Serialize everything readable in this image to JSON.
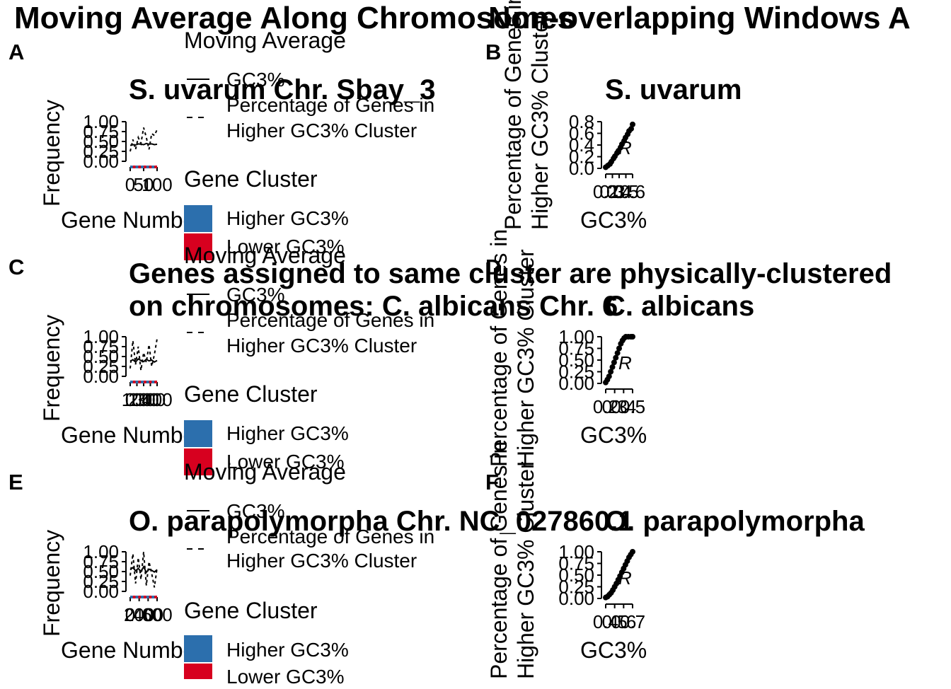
{
  "titles": {
    "left": "Moving Average Along Chromosomes",
    "right": "Non-overlapping Windows A"
  },
  "legend": {
    "line_title": "Moving Average",
    "line_gc3": "GC3%",
    "line_pct_1": "Percentage of Genes in",
    "line_pct_2": "Higher GC3% Cluster",
    "cluster_title": "Gene Cluster",
    "cluster_higher": "Higher GC3%",
    "cluster_lower": "Lower GC3%",
    "colors": {
      "higher": "#2c6fad",
      "lower": "#d7001f"
    }
  },
  "panels": {
    "A": {
      "letter": "A",
      "title": "S. uvarum Chr. Sbay_3",
      "ylabel": "Frequency",
      "xlabel": "Gene Number",
      "yticks": [
        "0.00",
        "0.25",
        "0.50",
        "0.75",
        "1.00"
      ],
      "xticks": [
        "0",
        "50",
        "100"
      ]
    },
    "B": {
      "letter": "B",
      "title": "S. uvarum",
      "ylabel_1": "Percentage of Genes in",
      "ylabel_2": "Higher GC3% Cluster",
      "xlabel": "GC3%",
      "yticks": [
        "0.0",
        "0.2",
        "0.4",
        "0.6",
        "0.8"
      ],
      "xticks": [
        "0.2",
        "0.3",
        "0.4",
        "0.5",
        "0.6"
      ],
      "stat": "R"
    },
    "C": {
      "letter": "C",
      "title_1": "Genes assigned to same cluster are physically-clustered",
      "title_2": "on chromosomes: C. albicans Chr. 6",
      "ylabel": "Frequency",
      "xlabel": "Gene Number",
      "yticks": [
        "0.00",
        "0.25",
        "0.50",
        "0.75",
        "1.00"
      ],
      "xticks": [
        "0",
        "100",
        "200",
        "300",
        "400"
      ]
    },
    "D": {
      "letter": "D",
      "title": "C. albicans",
      "ylabel_1": "Percentage of Genes in",
      "ylabel_2": "Higher GC3% Cluster",
      "xlabel": "GC3%",
      "yticks": [
        "0.00",
        "0.25",
        "0.50",
        "0.75",
        "1.00"
      ],
      "xticks": [
        "0.2",
        "0.3",
        "0.4",
        "0.5"
      ],
      "stat": "R"
    },
    "E": {
      "letter": "E",
      "title": "O. parapolymorpha Chr. NC_027860.1",
      "ylabel": "Frequency",
      "xlabel": "Gene Number",
      "yticks": [
        "0.00",
        "0.25",
        "0.50",
        "0.75",
        "1.00"
      ],
      "xticks": [
        "0",
        "200",
        "400",
        "600"
      ]
    },
    "F": {
      "letter": "F",
      "title": "O. parapolymorpha",
      "ylabel_1": "Percentage of Genes in",
      "ylabel_2": "Higher GC3% Cluster",
      "xlabel": "GC3%",
      "yticks": [
        "0.00",
        "0.25",
        "0.50",
        "0.75",
        "1.00"
      ],
      "xticks": [
        "0.4",
        "0.5",
        "0.6",
        "0.7"
      ],
      "stat": "R"
    }
  },
  "chart_data": [
    {
      "panel": "A",
      "type": "line",
      "x": [
        0,
        10,
        20,
        30,
        40,
        50,
        60,
        70,
        80,
        90,
        100
      ],
      "series": [
        {
          "name": "GC3%",
          "values": [
            0.4,
            0.42,
            0.41,
            0.44,
            0.43,
            0.42,
            0.45,
            0.43,
            0.44,
            0.42,
            0.43
          ]
        },
        {
          "name": "Percentage of Genes in Higher GC3% Cluster",
          "values": [
            0.25,
            0.55,
            0.3,
            0.6,
            0.45,
            0.85,
            0.6,
            0.3,
            0.7,
            0.65,
            0.8
          ]
        }
      ],
      "ylim": [
        0,
        1
      ]
    },
    {
      "panel": "B",
      "type": "scatter",
      "x": [
        0.22,
        0.25,
        0.28,
        0.3,
        0.33,
        0.35,
        0.38,
        0.4,
        0.43,
        0.45,
        0.48,
        0.5,
        0.53,
        0.55,
        0.58,
        0.6
      ],
      "y": [
        0.02,
        0.05,
        0.08,
        0.12,
        0.18,
        0.22,
        0.28,
        0.32,
        0.38,
        0.44,
        0.5,
        0.56,
        0.62,
        0.68,
        0.72,
        0.8
      ],
      "ylim": [
        0,
        0.85
      ]
    },
    {
      "panel": "C",
      "type": "line",
      "x": [
        0,
        40,
        80,
        120,
        160,
        200,
        240,
        280,
        320,
        360,
        400
      ],
      "series": [
        {
          "name": "GC3%",
          "values": [
            0.38,
            0.42,
            0.36,
            0.44,
            0.4,
            0.37,
            0.43,
            0.39,
            0.41,
            0.36,
            0.4
          ]
        },
        {
          "name": "Percentage of Genes in Higher GC3% Cluster",
          "values": [
            0.2,
            0.9,
            0.3,
            0.75,
            0.15,
            0.6,
            0.35,
            0.8,
            0.25,
            0.55,
            0.95
          ]
        }
      ],
      "ylim": [
        0,
        1
      ]
    },
    {
      "panel": "D",
      "type": "scatter",
      "x": [
        0.18,
        0.2,
        0.22,
        0.24,
        0.26,
        0.28,
        0.3,
        0.32,
        0.34,
        0.36,
        0.38,
        0.4,
        0.42,
        0.45,
        0.48,
        0.5
      ],
      "y": [
        0.02,
        0.08,
        0.15,
        0.25,
        0.35,
        0.45,
        0.55,
        0.65,
        0.75,
        0.85,
        0.92,
        0.97,
        1.0,
        1.0,
        1.0,
        1.0
      ],
      "ylim": [
        0,
        1
      ]
    },
    {
      "panel": "E",
      "type": "line",
      "x": [
        0,
        60,
        120,
        180,
        240,
        300,
        360,
        420,
        480,
        540,
        600
      ],
      "series": [
        {
          "name": "GC3%",
          "values": [
            0.55,
            0.6,
            0.52,
            0.58,
            0.5,
            0.62,
            0.48,
            0.56,
            0.53,
            0.49,
            0.55
          ]
        },
        {
          "name": "Percentage of Genes in Higher GC3% Cluster",
          "values": [
            0.4,
            0.95,
            0.2,
            0.85,
            0.3,
            1.0,
            0.15,
            0.75,
            0.45,
            0.1,
            0.6
          ]
        }
      ],
      "ylim": [
        0,
        1
      ]
    },
    {
      "panel": "F",
      "type": "scatter",
      "x": [
        0.4,
        0.42,
        0.44,
        0.46,
        0.48,
        0.5,
        0.52,
        0.54,
        0.56,
        0.58,
        0.6,
        0.62,
        0.64,
        0.66,
        0.68,
        0.7
      ],
      "y": [
        0.02,
        0.04,
        0.08,
        0.12,
        0.18,
        0.25,
        0.32,
        0.4,
        0.48,
        0.56,
        0.64,
        0.72,
        0.8,
        0.88,
        0.94,
        1.0
      ],
      "ylim": [
        0,
        1
      ]
    }
  ]
}
